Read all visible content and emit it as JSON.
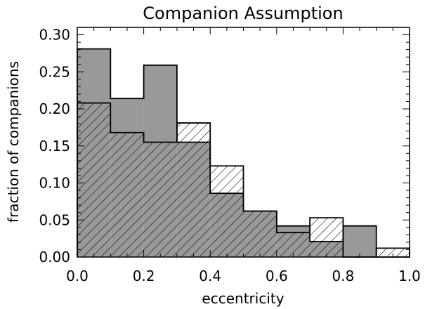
{
  "chart_data": {
    "type": "bar",
    "title": "Companion Assumption",
    "xlabel": "eccentricity",
    "ylabel": "fraction of companions",
    "xlim": [
      0.0,
      1.0
    ],
    "ylim": [
      0.0,
      0.31
    ],
    "x_ticks": [
      "0.0",
      "0.2",
      "0.4",
      "0.6",
      "0.8",
      "1.0"
    ],
    "y_ticks": [
      "0.00",
      "0.05",
      "0.10",
      "0.15",
      "0.20",
      "0.25",
      "0.30"
    ],
    "bin_edges": [
      0.0,
      0.1,
      0.2,
      0.3,
      0.4,
      0.5,
      0.6,
      0.7,
      0.8,
      0.9,
      1.0
    ],
    "grid": false,
    "legend": "none",
    "series": [
      {
        "style": "solid-gray",
        "color": "#999999",
        "values": [
          0.281,
          0.214,
          0.259,
          0.155,
          0.086,
          0.062,
          0.042,
          0.021,
          0.042,
          0.0
        ]
      },
      {
        "style": "hatched",
        "color": "#000000",
        "values": [
          0.208,
          0.168,
          0.155,
          0.181,
          0.123,
          0.062,
          0.033,
          0.053,
          0.0,
          0.012
        ]
      }
    ]
  }
}
